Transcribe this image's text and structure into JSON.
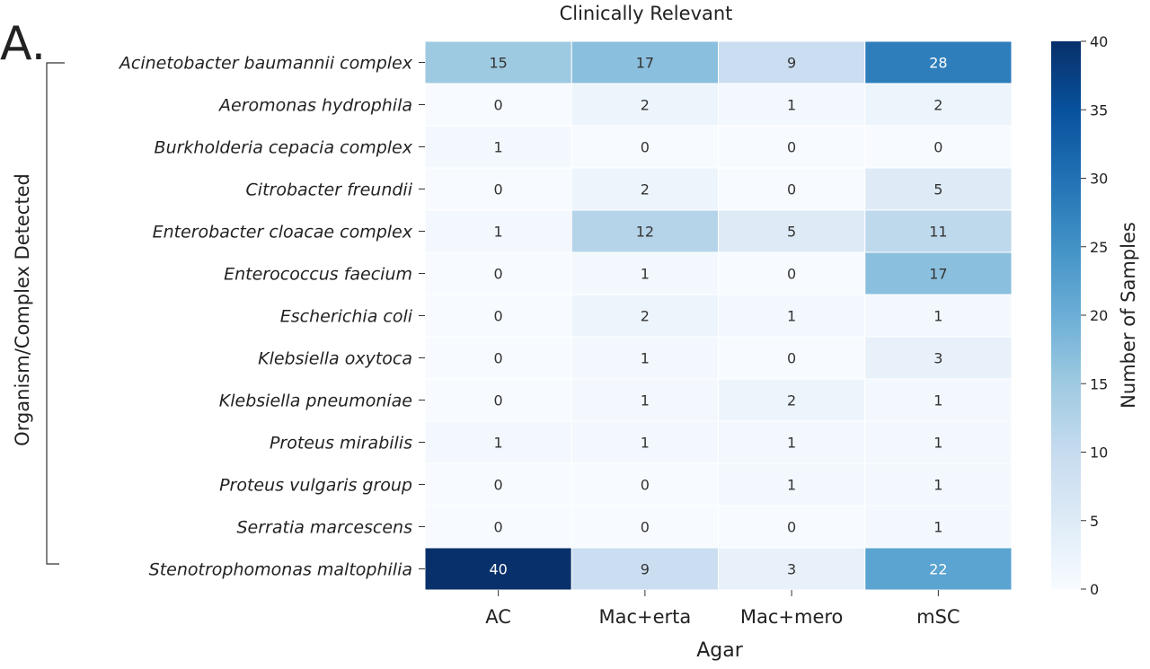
{
  "panel_label": "A.",
  "chart_data": {
    "type": "heatmap",
    "title": "Clinically Relevant",
    "xlabel": "Agar",
    "ylabel": "Organism/Complex Detected",
    "x_categories": [
      "AC",
      "Mac+erta",
      "Mac+mero",
      "mSC"
    ],
    "y_categories": [
      "Acinetobacter baumannii complex",
      "Aeromonas hydrophila",
      "Burkholderia cepacia complex",
      "Citrobacter freundii",
      "Enterobacter cloacae complex",
      "Enterococcus faecium",
      "Escherichia coli",
      "Klebsiella oxytoca",
      "Klebsiella pneumoniae",
      "Proteus mirabilis",
      "Proteus vulgaris group",
      "Serratia marcescens",
      "Stenotrophomonas maltophilia"
    ],
    "values": [
      [
        15,
        17,
        9,
        28
      ],
      [
        0,
        2,
        1,
        2
      ],
      [
        1,
        0,
        0,
        0
      ],
      [
        0,
        2,
        0,
        5
      ],
      [
        1,
        12,
        5,
        11
      ],
      [
        0,
        1,
        0,
        17
      ],
      [
        0,
        2,
        1,
        1
      ],
      [
        0,
        1,
        0,
        3
      ],
      [
        0,
        1,
        2,
        1
      ],
      [
        1,
        1,
        1,
        1
      ],
      [
        0,
        0,
        1,
        1
      ],
      [
        0,
        0,
        0,
        1
      ],
      [
        40,
        9,
        3,
        22
      ]
    ],
    "colorbar": {
      "label": "Number of Samples",
      "vmin": 0,
      "vmax": 40,
      "ticks": [
        0,
        5,
        10,
        15,
        20,
        25,
        30,
        35,
        40
      ],
      "colormap": "Blues",
      "stops": [
        "#f7fbff",
        "#deebf7",
        "#c6dbef",
        "#9ecae1",
        "#6baed6",
        "#4292c6",
        "#2171b5",
        "#08519c",
        "#08306b"
      ]
    }
  }
}
